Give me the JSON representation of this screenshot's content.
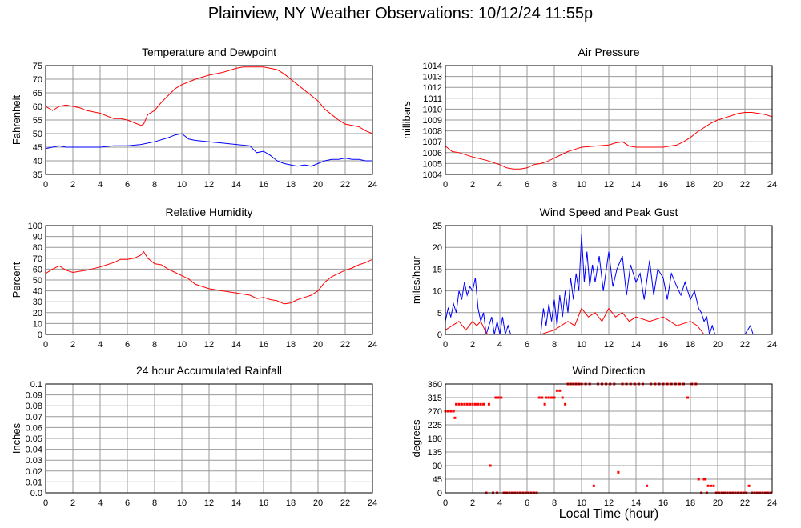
{
  "page": {
    "title": "Plainview, NY Weather Observations: 10/12/24 11:55p",
    "x_caption": "Local Time (hour)"
  },
  "colors": {
    "red": "#ff0000",
    "blue": "#0000ff",
    "grid": "#999999",
    "frame": "#000000"
  },
  "chart_data": [
    {
      "id": "temperature",
      "type": "line",
      "title": "Temperature and Dewpoint",
      "xlabel": "",
      "ylabel": "Fahrenheit",
      "xlim": [
        0,
        24
      ],
      "ylim": [
        35,
        75
      ],
      "xticks": [
        0,
        2,
        4,
        6,
        8,
        10,
        12,
        14,
        16,
        18,
        20,
        22,
        24
      ],
      "yticks": [
        35,
        40,
        45,
        50,
        55,
        60,
        65,
        70,
        75
      ],
      "grid": true,
      "series": [
        {
          "color": "#ff0000",
          "x": [
            0,
            0.5,
            1,
            1.5,
            2,
            2.5,
            3,
            4,
            5,
            5.5,
            6,
            6.5,
            7,
            7.2,
            7.5,
            8,
            8.5,
            9,
            9.5,
            10,
            11,
            12,
            13,
            14,
            14.5,
            15,
            15.5,
            16,
            16.5,
            17,
            17.5,
            18,
            18.5,
            19,
            19.5,
            20,
            20.5,
            21,
            21.5,
            22,
            22.5,
            23,
            23.5,
            24
          ],
          "y": [
            60,
            58.5,
            60,
            60.5,
            60,
            59.5,
            58.5,
            57.5,
            55.5,
            55.5,
            55,
            54,
            53,
            53.5,
            57,
            58.5,
            61.5,
            64,
            66.5,
            68,
            70,
            71.5,
            72.5,
            74,
            74.5,
            74.5,
            74.5,
            74.5,
            74,
            73.5,
            72,
            70,
            68,
            66,
            64,
            62,
            59,
            57,
            55,
            53.5,
            53,
            52.5,
            51,
            50
          ]
        },
        {
          "color": "#0000ff",
          "x": [
            0,
            0.5,
            1,
            1.5,
            2,
            3,
            4,
            5,
            6,
            7,
            8,
            9,
            9.5,
            10,
            10.5,
            11,
            12,
            13,
            14,
            15,
            15.5,
            16,
            16.5,
            17,
            17.5,
            18,
            18.5,
            19,
            19.5,
            20,
            20.5,
            21,
            21.5,
            22,
            22.5,
            23,
            23.5,
            24
          ],
          "y": [
            44.5,
            45,
            45.5,
            45,
            45,
            45,
            45,
            45.5,
            45.5,
            46,
            47,
            48.5,
            49.5,
            50,
            48,
            47.5,
            47,
            46.5,
            46,
            45.5,
            43,
            43.5,
            42,
            40,
            39,
            38.5,
            38,
            38.5,
            38,
            39,
            40,
            40.5,
            40.5,
            41,
            40.5,
            40.5,
            40,
            40
          ]
        }
      ]
    },
    {
      "id": "pressure",
      "type": "line",
      "title": "Air Pressure",
      "xlabel": "",
      "ylabel": "millibars",
      "xlim": [
        0,
        24
      ],
      "ylim": [
        1004,
        1014
      ],
      "xticks": [
        0,
        2,
        4,
        6,
        8,
        10,
        12,
        14,
        16,
        18,
        20,
        22,
        24
      ],
      "yticks": [
        1004,
        1005,
        1006,
        1007,
        1008,
        1009,
        1010,
        1011,
        1012,
        1013,
        1014
      ],
      "grid": true,
      "series": [
        {
          "color": "#ff0000",
          "x": [
            0,
            0.5,
            1,
            2,
            3,
            4,
            4.5,
            5,
            5.5,
            6,
            6.5,
            7,
            7.5,
            8,
            8.5,
            9,
            9.5,
            10,
            11,
            12,
            12.5,
            13,
            13.5,
            14,
            15,
            16,
            17,
            17.5,
            18,
            18.5,
            19,
            19.5,
            20,
            20.5,
            21,
            21.5,
            22,
            22.5,
            23,
            23.5,
            24
          ],
          "y": [
            1006.6,
            1006.1,
            1006,
            1005.6,
            1005.3,
            1004.9,
            1004.6,
            1004.5,
            1004.5,
            1004.6,
            1004.9,
            1005,
            1005.2,
            1005.5,
            1005.8,
            1006.1,
            1006.3,
            1006.5,
            1006.6,
            1006.7,
            1006.9,
            1007,
            1006.6,
            1006.5,
            1006.5,
            1006.5,
            1006.7,
            1007,
            1007.4,
            1007.9,
            1008.3,
            1008.7,
            1009,
            1009.2,
            1009.4,
            1009.6,
            1009.7,
            1009.7,
            1009.6,
            1009.5,
            1009.3
          ]
        }
      ]
    },
    {
      "id": "humidity",
      "type": "line",
      "title": "Relative Humidity",
      "xlabel": "",
      "ylabel": "Percent",
      "xlim": [
        0,
        24
      ],
      "ylim": [
        0,
        100
      ],
      "xticks": [
        0,
        2,
        4,
        6,
        8,
        10,
        12,
        14,
        16,
        18,
        20,
        22,
        24
      ],
      "yticks": [
        0,
        10,
        20,
        30,
        40,
        50,
        60,
        70,
        80,
        90,
        100
      ],
      "grid": true,
      "series": [
        {
          "color": "#ff0000",
          "x": [
            0,
            0.5,
            1,
            1.5,
            2,
            3,
            4,
            5,
            5.5,
            6,
            6.5,
            7,
            7.2,
            7.5,
            8,
            8.5,
            9,
            9.5,
            10,
            10.5,
            11,
            12,
            13,
            14,
            15,
            15.5,
            16,
            16.5,
            17,
            17.5,
            18,
            18.5,
            19,
            19.5,
            20,
            20.5,
            21,
            21.5,
            22,
            22.5,
            23,
            23.5,
            24
          ],
          "y": [
            56,
            60,
            63,
            59,
            57,
            59,
            62,
            66,
            69,
            69,
            70,
            73,
            76,
            70,
            65,
            64,
            60,
            57,
            54,
            51,
            46,
            42,
            40,
            38,
            36,
            33,
            34,
            32,
            31,
            28,
            29,
            32,
            34,
            36,
            40,
            48,
            53,
            56,
            59,
            61,
            64,
            66,
            69
          ]
        }
      ]
    },
    {
      "id": "wind_speed",
      "type": "line",
      "title": "Wind Speed and Peak Gust",
      "xlabel": "",
      "ylabel": "miles/hour",
      "xlim": [
        0,
        24
      ],
      "ylim": [
        0,
        25
      ],
      "xticks": [
        0,
        2,
        4,
        6,
        8,
        10,
        12,
        14,
        16,
        18,
        20,
        22,
        24
      ],
      "yticks": [
        0,
        5,
        10,
        15,
        20,
        25
      ],
      "grid": true,
      "series": [
        {
          "color": "#0000ff",
          "x": [
            0,
            0.2,
            0.4,
            0.6,
            0.8,
            1,
            1.2,
            1.4,
            1.6,
            1.8,
            2,
            2.2,
            2.4,
            2.6,
            2.8,
            3,
            3.2,
            3.4,
            3.6,
            3.8,
            4,
            4.2,
            4.4,
            4.6,
            4.8,
            7,
            7.2,
            7.4,
            7.6,
            7.8,
            8,
            8.2,
            8.4,
            8.6,
            8.8,
            9,
            9.2,
            9.4,
            9.6,
            9.8,
            10,
            10.2,
            10.4,
            10.6,
            10.8,
            11,
            11.3,
            11.6,
            12,
            12.3,
            12.6,
            13,
            13.3,
            13.6,
            14,
            14.3,
            14.6,
            15,
            15.3,
            15.6,
            16,
            16.3,
            16.6,
            17,
            17.3,
            17.6,
            18,
            18.3,
            18.6,
            18.8,
            19,
            19.2,
            19.4,
            19.6,
            19.8,
            20,
            22,
            22.4,
            22.6,
            22.8,
            24
          ],
          "y": [
            3,
            6,
            4,
            7,
            5,
            10,
            8,
            12,
            9,
            11,
            10,
            13,
            6,
            3,
            5,
            0,
            2,
            4,
            0,
            3,
            0,
            4,
            0,
            2,
            0,
            0,
            6,
            2,
            7,
            3,
            8,
            2,
            9,
            4,
            10,
            5,
            13,
            8,
            14,
            10,
            23,
            12,
            19,
            11,
            16,
            12,
            18,
            10,
            19,
            11,
            15,
            18,
            9,
            16,
            12,
            14,
            8,
            17,
            9,
            15,
            13,
            8,
            14,
            11,
            9,
            12,
            8,
            10,
            6,
            5,
            3,
            4,
            0,
            2,
            0,
            0,
            0,
            2,
            0,
            0,
            0
          ]
        },
        {
          "color": "#ff0000",
          "x": [
            0,
            0.5,
            1,
            1.5,
            2,
            2.3,
            2.6,
            2.9,
            3.1,
            7,
            8,
            8.5,
            9,
            9.5,
            10,
            10.5,
            11,
            11.5,
            12,
            12.5,
            13,
            13.5,
            14,
            15,
            16,
            17,
            18,
            18.5,
            19,
            19.5,
            24
          ],
          "y": [
            1,
            2,
            3,
            1,
            3,
            2,
            3,
            1,
            0,
            0,
            1,
            2,
            3,
            2,
            6,
            4,
            5,
            3,
            6,
            4,
            5,
            3,
            4,
            3,
            4,
            2,
            3,
            2,
            0,
            0,
            0
          ]
        }
      ]
    },
    {
      "id": "rainfall",
      "type": "line",
      "title": "24 hour Accumulated Rainfall",
      "xlabel": "",
      "ylabel": "Inches",
      "xlim": [
        0,
        24
      ],
      "ylim": [
        0,
        0.1
      ],
      "xticks": [
        0,
        2,
        4,
        6,
        8,
        10,
        12,
        14,
        16,
        18,
        20,
        22,
        24
      ],
      "yticks": [
        0.0,
        0.01,
        0.02,
        0.03,
        0.04,
        0.05,
        0.06,
        0.07,
        0.08,
        0.09,
        0.1
      ],
      "ytick_labels": [
        "0.0",
        "0.01",
        "0.02",
        "0.03",
        "0.04",
        "0.05",
        "0.06",
        "0.07",
        "0.08",
        "0.09",
        "0.1"
      ],
      "grid": true,
      "series": [
        {
          "color": "#ff0000",
          "x": [
            0,
            24
          ],
          "y": [
            0,
            0
          ]
        }
      ]
    },
    {
      "id": "wind_direction",
      "type": "scatter",
      "title": "Wind Direction",
      "xlabel": "Local Time (hour)",
      "ylabel": "degrees",
      "xlim": [
        0,
        24
      ],
      "ylim": [
        0,
        360
      ],
      "xticks": [
        0,
        2,
        4,
        6,
        8,
        10,
        12,
        14,
        16,
        18,
        20,
        22,
        24
      ],
      "yticks": [
        0,
        45,
        90,
        135,
        180,
        225,
        270,
        315,
        360
      ],
      "grid": true,
      "series": [
        {
          "color": "#ff0000",
          "x": [
            0,
            0.2,
            0.4,
            0.6,
            0.7,
            0.8,
            1,
            1.2,
            1.4,
            1.6,
            1.8,
            2,
            2.2,
            2.4,
            2.6,
            2.8,
            3,
            3.2,
            3.3,
            3.5,
            3.7,
            3.8,
            3.9,
            4.1,
            4.3,
            4.5,
            4.7,
            4.9,
            5.1,
            5.3,
            5.5,
            5.7,
            5.9,
            6.1,
            6.3,
            6.5,
            6.7,
            6.9,
            7.1,
            7.3,
            7.4,
            7.6,
            7.8,
            8,
            8.2,
            8.4,
            8.6,
            8.8,
            9,
            9.2,
            9.4,
            9.6,
            9.8,
            10,
            10.3,
            10.6,
            10.9,
            11.2,
            11.5,
            11.8,
            12.1,
            12.4,
            12.7,
            13,
            13.3,
            13.6,
            13.9,
            14.2,
            14.5,
            14.8,
            15.1,
            15.4,
            15.7,
            16,
            16.3,
            16.6,
            16.9,
            17.2,
            17.5,
            17.8,
            18.1,
            18.4,
            18.6,
            18.8,
            19,
            19.1,
            19.2,
            19.3,
            19.5,
            19.7,
            19.9,
            20.1,
            20.3,
            20.5,
            20.7,
            20.9,
            21.1,
            21.3,
            21.5,
            21.7,
            21.9,
            22.1,
            22.3,
            22.5,
            22.7,
            22.9,
            23.1,
            23.3,
            23.5,
            23.7,
            23.9
          ],
          "y": [
            270,
            270,
            270,
            270,
            248,
            293,
            293,
            293,
            293,
            293,
            293,
            293,
            293,
            293,
            293,
            293,
            0,
            293,
            90,
            0,
            315,
            0,
            315,
            315,
            0,
            0,
            0,
            0,
            0,
            0,
            0,
            0,
            0,
            0,
            0,
            0,
            0,
            315,
            315,
            293,
            315,
            315,
            315,
            315,
            338,
            338,
            315,
            293,
            360,
            360,
            360,
            360,
            360,
            360,
            360,
            360,
            23,
            360,
            360,
            360,
            360,
            360,
            68,
            360,
            360,
            360,
            360,
            360,
            360,
            23,
            360,
            360,
            360,
            360,
            360,
            360,
            360,
            360,
            360,
            315,
            360,
            360,
            45,
            0,
            45,
            45,
            0,
            23,
            23,
            23,
            0,
            0,
            0,
            0,
            0,
            0,
            0,
            0,
            0,
            0,
            0,
            0,
            23,
            0,
            0,
            0,
            0,
            0,
            0,
            0,
            0
          ]
        }
      ]
    }
  ]
}
